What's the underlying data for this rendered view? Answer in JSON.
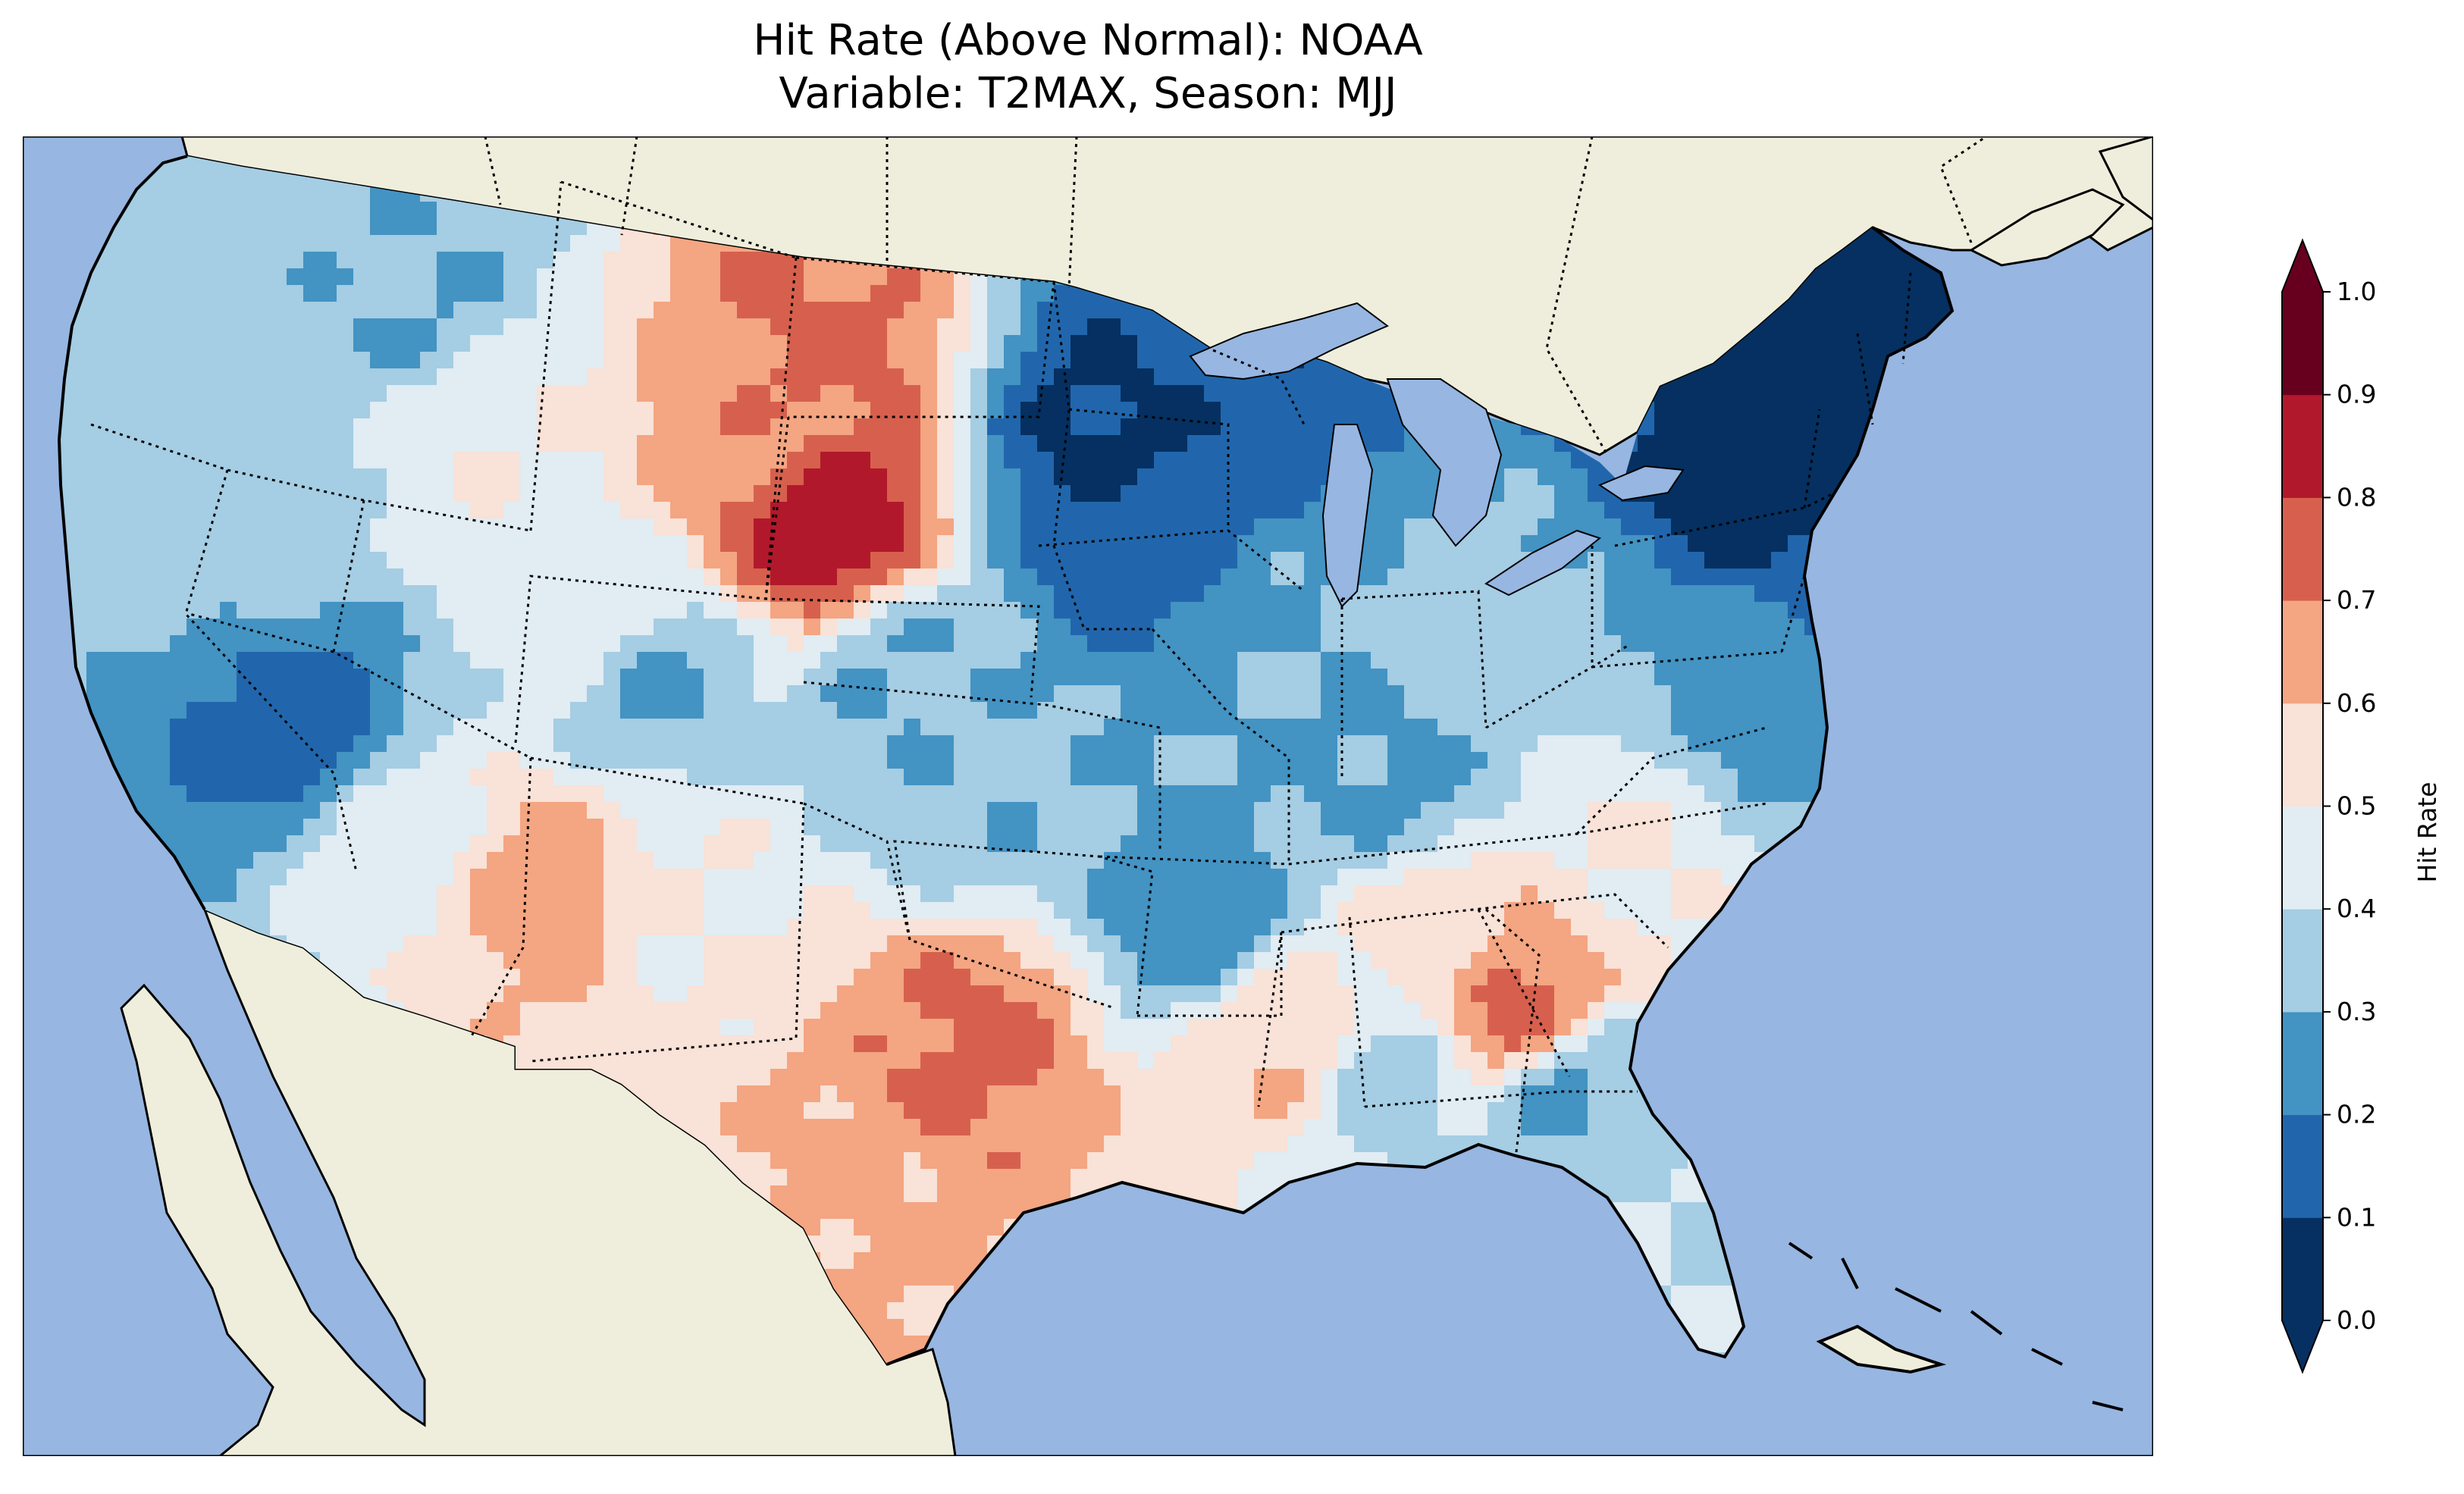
{
  "title": {
    "line1": "Hit Rate (Above Normal): NOAA",
    "line2": "Variable: T2MAX, Season: MJJ"
  },
  "colors": {
    "ocean": "#97B6E1",
    "land": "#EFEEDC",
    "frame": "#000000"
  },
  "colorbar": {
    "label": "Hit Rate",
    "extend": "both",
    "bins": [
      {
        "from": 0.0,
        "to": 0.1,
        "color": "#053061"
      },
      {
        "from": 0.1,
        "to": 0.2,
        "color": "#2166AC"
      },
      {
        "from": 0.2,
        "to": 0.3,
        "color": "#4393C3"
      },
      {
        "from": 0.3,
        "to": 0.4,
        "color": "#A5CDE3"
      },
      {
        "from": 0.4,
        "to": 0.5,
        "color": "#E1ECF3"
      },
      {
        "from": 0.5,
        "to": 0.6,
        "color": "#F9E2D7"
      },
      {
        "from": 0.6,
        "to": 0.7,
        "color": "#F4A582"
      },
      {
        "from": 0.7,
        "to": 0.8,
        "color": "#D6604D"
      },
      {
        "from": 0.8,
        "to": 0.9,
        "color": "#B2182B"
      },
      {
        "from": 0.9,
        "to": 1.0,
        "color": "#67001F"
      }
    ],
    "ticks": [
      "0.0",
      "0.1",
      "0.2",
      "0.3",
      "0.4",
      "0.5",
      "0.6",
      "0.7",
      "0.8",
      "0.9",
      "1.0"
    ]
  },
  "chart_data": {
    "type": "heatmap",
    "title": "Hit Rate (Above Normal): NOAA",
    "subtitle": "Variable: T2MAX, Season: MJJ",
    "region": "Contiguous United States",
    "variable": "T2MAX",
    "season": "MJJ",
    "colorbar_label": "Hit Rate",
    "range": [
      0.0,
      1.0
    ],
    "approximate_regional_values": [
      {
        "region": "Pacific Northwest coast",
        "value": 0.35
      },
      {
        "region": "Northern Rockies",
        "value": 0.3
      },
      {
        "region": "Central Wyoming / Montana",
        "value": 0.68
      },
      {
        "region": "Central Wyoming peak",
        "value": 0.85
      },
      {
        "region": "Western North Dakota",
        "value": 0.72
      },
      {
        "region": "Central Nevada",
        "value": 0.15
      },
      {
        "region": "Southwest deserts",
        "value": 0.45
      },
      {
        "region": "Central Arizona / New Mexico",
        "value": 0.65
      },
      {
        "region": "Texas Panhandle / Oklahoma",
        "value": 0.72
      },
      {
        "region": "South Texas",
        "value": 0.62
      },
      {
        "region": "Central Plains",
        "value": 0.3
      },
      {
        "region": "Minnesota",
        "value": 0.08
      },
      {
        "region": "Upper Michigan / Wisconsin",
        "value": 0.12
      },
      {
        "region": "Ohio Valley",
        "value": 0.28
      },
      {
        "region": "Georgia / Alabama",
        "value": 0.72
      },
      {
        "region": "Florida",
        "value": 0.4
      },
      {
        "region": "Mid-Atlantic",
        "value": 0.25
      },
      {
        "region": "New York / New England",
        "value": 0.05
      },
      {
        "region": "Maine",
        "value": 0.03
      }
    ]
  }
}
